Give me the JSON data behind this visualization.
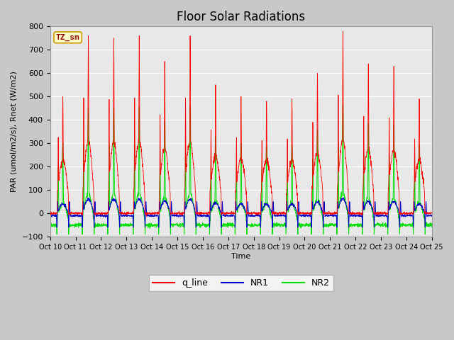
{
  "title": "Floor Solar Radiations",
  "ylabel": "PAR (umol/m2/s), Rnet (W/m2)",
  "xlabel": "Time",
  "ylim": [
    -100,
    800
  ],
  "yticks": [
    -100,
    0,
    100,
    200,
    300,
    400,
    500,
    600,
    700,
    800
  ],
  "x_tick_labels": [
    "Oct 10",
    "Oct 11",
    "Oct 12",
    "Oct 13",
    "Oct 14",
    "Oct 15",
    "Oct 16",
    "Oct 17",
    "Oct 18",
    "Oct 19",
    "Oct 20",
    "Oct 21",
    "Oct 22",
    "Oct 23",
    "Oct 24",
    "Oct 25"
  ],
  "line_colors": {
    "q_line": "#ff0000",
    "NR1": "#0000cc",
    "NR2": "#00dd00"
  },
  "fig_bg": "#c8c8c8",
  "axes_bg": "#e8e8e8",
  "grid_color": "#ffffff",
  "title_fontsize": 12,
  "label_fontsize": 8,
  "n_days": 15,
  "pts_per_day": 144,
  "q_peak_vals": [
    500,
    760,
    750,
    760,
    650,
    760,
    550,
    500,
    480,
    490,
    600,
    780,
    640,
    630,
    490
  ],
  "q_day_baseline": 80,
  "NR1_night": -10,
  "NR2_night": -50,
  "NR2_peak_scale": 0.6,
  "NR1_peak_scale": 0.08
}
